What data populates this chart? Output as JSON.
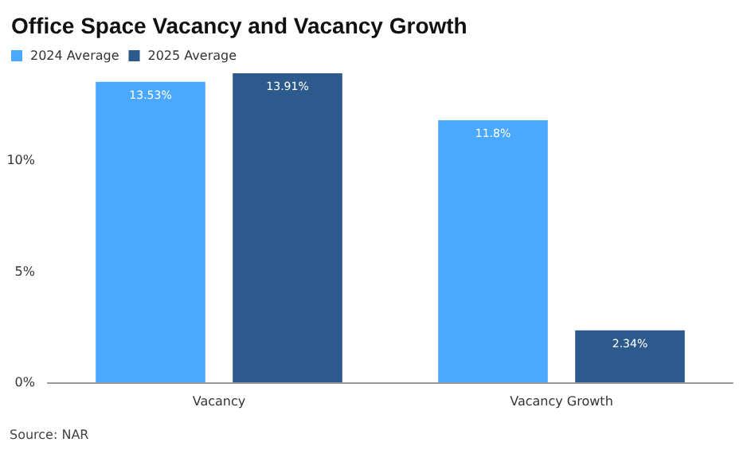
{
  "chart_data": {
    "type": "bar",
    "title": "Office Space Vacancy and Vacancy Growth",
    "categories": [
      "Vacancy",
      "Vacancy Growth"
    ],
    "series": [
      {
        "name": "2024 Average",
        "color": "#4aa8ff",
        "values": [
          13.53,
          11.8
        ],
        "value_labels": [
          "13.53%",
          "11.8%"
        ]
      },
      {
        "name": "2025 Average",
        "color": "#2d5a8c",
        "values": [
          13.91,
          2.34
        ],
        "value_labels": [
          "13.91%",
          "2.34%"
        ]
      }
    ],
    "ylim": [
      0,
      14.2
    ],
    "yticks": [
      {
        "value": 0,
        "label": "0%"
      },
      {
        "value": 5,
        "label": "5%"
      },
      {
        "value": 10,
        "label": "10%"
      }
    ],
    "legend": "top left",
    "grid": false,
    "annotations": [
      "Source: NAR"
    ]
  }
}
